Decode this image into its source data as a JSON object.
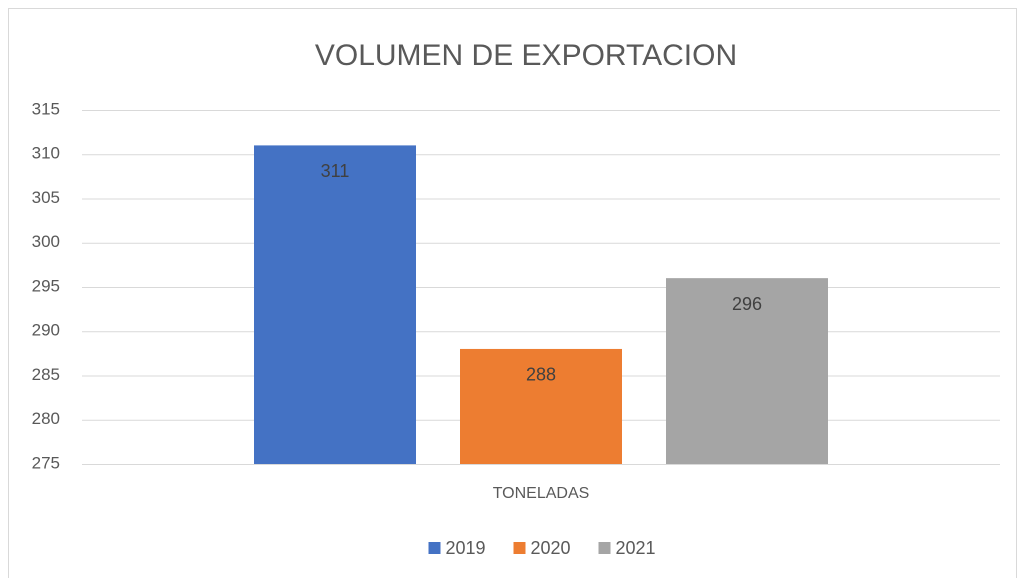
{
  "chart_data": {
    "type": "bar",
    "title": "VOLUMEN DE EXPORTACION",
    "categories": [
      "TONELADAS"
    ],
    "series": [
      {
        "name": "2019",
        "color": "#4472c4",
        "values": [
          311
        ]
      },
      {
        "name": "2020",
        "color": "#ed7d31",
        "values": [
          288
        ]
      },
      {
        "name": "2021",
        "color": "#a5a5a5",
        "values": [
          296
        ]
      }
    ],
    "ylim": [
      275,
      315
    ],
    "yticks": [
      275,
      280,
      285,
      290,
      295,
      300,
      305,
      310,
      315
    ],
    "grid": true,
    "legend": "bottom"
  }
}
